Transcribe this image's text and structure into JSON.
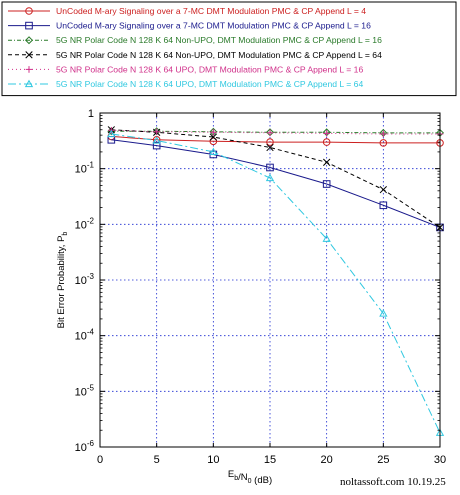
{
  "chart_data": {
    "type": "line",
    "xlabel": "E_b/N_0 (dB)",
    "ylabel": "Bit Error Probability, P_b",
    "xlim": [
      0,
      30
    ],
    "ylim_log10": [
      -6,
      0
    ],
    "log_scale_y": true,
    "grid": true,
    "legend_position": "top",
    "x_ticks": [
      "0",
      "5",
      "10",
      "15",
      "20",
      "25",
      "30"
    ],
    "watermark": "noltassoft.com 10.19.25",
    "series": [
      {
        "name": "UnCoded M-ary Signaling over a 7-MC DMT Modulation PMC & CP Append L = 4",
        "color": "#cc2020",
        "marker": "circle",
        "dash": "",
        "x": [
          1,
          5,
          10,
          15,
          20,
          25,
          30
        ],
        "y": [
          0.38,
          0.33,
          0.31,
          0.3,
          0.3,
          0.29,
          0.29
        ]
      },
      {
        "name": "UnCoded M-ary Signaling over a 7-MC DMT Modulation PMC & CP Append L = 16",
        "color": "#1a1a8c",
        "marker": "square",
        "dash": "",
        "x": [
          1,
          5,
          10,
          15,
          20,
          25,
          30
        ],
        "y": [
          0.33,
          0.26,
          0.18,
          0.105,
          0.053,
          0.022,
          0.0088
        ]
      },
      {
        "name": "5G NR Polar Code N 128 K 64 Non-UPO, DMT Modulation PMC & CP Append L = 16",
        "color": "#2a7a2a",
        "marker": "diamond",
        "dash": "4,2,1,2",
        "x": [
          1,
          5,
          10,
          15,
          20,
          25,
          30
        ],
        "y": [
          0.47,
          0.47,
          0.46,
          0.45,
          0.45,
          0.44,
          0.44
        ]
      },
      {
        "name": "5G NR Polar Code N 128 K 64 Non-UPO, DMT Modulation PMC & CP Append L = 64",
        "color": "#000000",
        "marker": "x",
        "dash": "4,3",
        "x": [
          1,
          5,
          10,
          15,
          20,
          25,
          30
        ],
        "y": [
          0.5,
          0.45,
          0.37,
          0.24,
          0.13,
          0.042,
          0.0088
        ]
      },
      {
        "name": "5G NR Polar Code N 128 K 64 UPO, DMT Modulation PMC & CP Append L = 16",
        "color": "#d0308a",
        "marker": "plus",
        "dash": "1,3",
        "x": [
          1,
          5,
          10,
          15,
          20,
          25,
          30
        ],
        "y": [
          0.49,
          0.46,
          0.45,
          0.44,
          0.43,
          0.42,
          0.42
        ]
      },
      {
        "name": "5G NR Polar Code N 128 K 64 UPO, DMT Modulation PMC & CP Append L = 64",
        "color": "#30c8e0",
        "marker": "triangle",
        "dash": "8,3,2,3",
        "x": [
          1,
          5,
          10,
          15,
          20,
          25,
          30
        ],
        "y": [
          0.42,
          0.32,
          0.2,
          0.068,
          0.0055,
          0.00025,
          1.8e-06
        ]
      }
    ]
  }
}
